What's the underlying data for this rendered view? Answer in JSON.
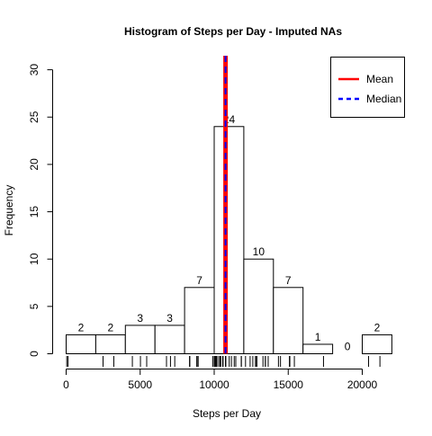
{
  "chart_data": {
    "type": "bar",
    "title": "Histogram of Steps per Day - Imputed NAs",
    "xlabel": "Steps per Day",
    "ylabel": "Frequency",
    "bins": [
      {
        "from": 0,
        "to": 2000,
        "count": 2
      },
      {
        "from": 2000,
        "to": 4000,
        "count": 2
      },
      {
        "from": 4000,
        "to": 6000,
        "count": 3
      },
      {
        "from": 6000,
        "to": 8000,
        "count": 3
      },
      {
        "from": 8000,
        "to": 10000,
        "count": 7
      },
      {
        "from": 10000,
        "to": 12000,
        "count": 24
      },
      {
        "from": 12000,
        "to": 14000,
        "count": 10
      },
      {
        "from": 14000,
        "to": 16000,
        "count": 7
      },
      {
        "from": 16000,
        "to": 18000,
        "count": 1
      },
      {
        "from": 18000,
        "to": 20000,
        "count": 0
      },
      {
        "from": 20000,
        "to": 22000,
        "count": 2
      }
    ],
    "bar_labels": [
      "2",
      "2",
      "3",
      "3",
      "7",
      "24",
      "10",
      "7",
      "1",
      "0",
      "2"
    ],
    "xlim": [
      0,
      22000
    ],
    "ylim": [
      0,
      30
    ],
    "x_ticks": [
      0,
      5000,
      10000,
      15000,
      20000
    ],
    "x_tick_labels": [
      "0",
      "5000",
      "10000",
      "15000",
      "20000"
    ],
    "y_ticks": [
      0,
      5,
      10,
      15,
      20,
      25,
      30
    ],
    "y_tick_labels": [
      "0",
      "5",
      "10",
      "15",
      "20",
      "25",
      "30"
    ],
    "mean": 10766,
    "median": 10766,
    "rug": [
      41,
      126,
      2492,
      3219,
      4472,
      5018,
      5441,
      6778,
      7047,
      7336,
      8334,
      8355,
      8821,
      8841,
      8918,
      9900,
      10000,
      10056,
      10119,
      10139,
      10183,
      10304,
      10395,
      10439,
      10571,
      10600,
      10765,
      10766,
      10766,
      10766,
      10766,
      10766,
      10766,
      10766,
      10766,
      11015,
      11162,
      11352,
      11458,
      11829,
      11834,
      12116,
      12426,
      12608,
      12787,
      12811,
      12883,
      13294,
      13452,
      13460,
      13646,
      14339,
      14478,
      15084,
      15098,
      15110,
      15414,
      17382,
      20427,
      21194
    ],
    "legend": {
      "position": "top-right",
      "entries": [
        {
          "label": "Mean",
          "color": "#ff0000",
          "style": "solid"
        },
        {
          "label": "Median",
          "color": "#0000ff",
          "style": "dashed"
        }
      ]
    },
    "grid": false,
    "colors": {
      "bar_fill": "#ffffff",
      "bar_stroke": "#000000",
      "mean_line": "#ff0000",
      "median_line": "#0000ff"
    }
  }
}
